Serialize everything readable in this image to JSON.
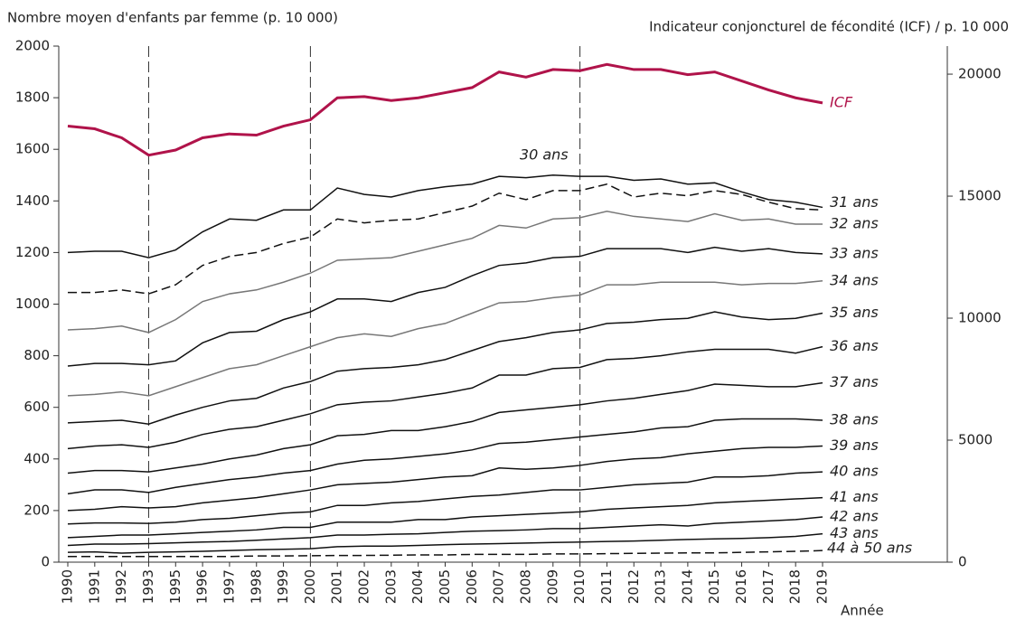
{
  "chart_data": {
    "type": "line",
    "y_axis_label": "Nombre moyen d'enfants par femme (p. 10 000)",
    "y2_axis_label": "Indicateur conjoncturel de fécondité (ICF) / p. 10 000",
    "x_axis_label": "Année",
    "categories": [
      "1990",
      "1991",
      "1992",
      "1993",
      "1995",
      "1996",
      "1997",
      "1998",
      "1999",
      "2000",
      "2001",
      "2002",
      "2003",
      "2004",
      "2005",
      "2006",
      "2007",
      "2008",
      "2009",
      "2010",
      "2011",
      "2012",
      "2013",
      "2014",
      "2015",
      "2016",
      "2017",
      "2018",
      "2019"
    ],
    "reference_years": [
      "1993",
      "2000",
      "2010"
    ],
    "ylim": [
      0,
      2000
    ],
    "yticks": [
      0,
      200,
      400,
      600,
      800,
      1000,
      1200,
      1400,
      1600,
      1800,
      2000
    ],
    "y2lim": [
      0,
      21150
    ],
    "y2ticks": [
      0,
      5000,
      10000,
      15000,
      20000
    ],
    "grid": false,
    "series": [
      {
        "name": "ICF",
        "axis": "y2",
        "color": "#b0134a",
        "dashed": false,
        "values": [
          17870,
          17760,
          17390,
          16680,
          16890,
          17390,
          17550,
          17500,
          17870,
          18130,
          19030,
          19080,
          18920,
          19030,
          19240,
          19450,
          20090,
          19880,
          20190,
          20140,
          20400,
          20190,
          20190,
          19980,
          20090,
          19720,
          19350,
          19030,
          18820
        ]
      },
      {
        "name": "30 ans",
        "color": "#111111",
        "dashed": false,
        "values": [
          1200,
          1205,
          1205,
          1180,
          1210,
          1280,
          1330,
          1325,
          1365,
          1365,
          1450,
          1425,
          1415,
          1440,
          1455,
          1465,
          1495,
          1490,
          1500,
          1495,
          1495,
          1480,
          1485,
          1465,
          1470,
          1435,
          1405,
          1395,
          1375
        ]
      },
      {
        "name": "31 ans",
        "color": "#111111",
        "dashed": true,
        "values": [
          1045,
          1045,
          1055,
          1040,
          1075,
          1150,
          1185,
          1200,
          1235,
          1260,
          1330,
          1315,
          1325,
          1330,
          1355,
          1380,
          1430,
          1405,
          1440,
          1440,
          1465,
          1415,
          1430,
          1420,
          1440,
          1425,
          1395,
          1370,
          1365
        ]
      },
      {
        "name": "32 ans",
        "color": "#777777",
        "dashed": false,
        "values": [
          900,
          905,
          915,
          890,
          940,
          1010,
          1040,
          1055,
          1085,
          1120,
          1170,
          1175,
          1180,
          1205,
          1230,
          1255,
          1305,
          1295,
          1330,
          1335,
          1360,
          1340,
          1330,
          1320,
          1350,
          1325,
          1330,
          1310,
          1310
        ]
      },
      {
        "name": "33 ans",
        "color": "#111111",
        "dashed": false,
        "values": [
          760,
          770,
          770,
          765,
          780,
          850,
          890,
          895,
          940,
          970,
          1020,
          1020,
          1010,
          1045,
          1065,
          1110,
          1150,
          1160,
          1180,
          1185,
          1215,
          1215,
          1215,
          1200,
          1220,
          1205,
          1215,
          1200,
          1195
        ]
      },
      {
        "name": "34 ans",
        "color": "#777777",
        "dashed": false,
        "values": [
          645,
          650,
          660,
          645,
          680,
          715,
          750,
          765,
          800,
          835,
          870,
          885,
          875,
          905,
          925,
          965,
          1005,
          1010,
          1025,
          1035,
          1075,
          1075,
          1085,
          1085,
          1085,
          1075,
          1080,
          1080,
          1090
        ]
      },
      {
        "name": "35 ans",
        "color": "#111111",
        "dashed": false,
        "values": [
          540,
          545,
          550,
          535,
          570,
          600,
          625,
          635,
          675,
          700,
          740,
          750,
          755,
          765,
          785,
          820,
          855,
          870,
          890,
          900,
          925,
          930,
          940,
          945,
          970,
          950,
          940,
          945,
          965
        ]
      },
      {
        "name": "36 ans",
        "color": "#111111",
        "dashed": false,
        "values": [
          440,
          450,
          455,
          445,
          465,
          495,
          515,
          525,
          550,
          575,
          610,
          620,
          625,
          640,
          655,
          675,
          725,
          725,
          750,
          755,
          785,
          790,
          800,
          815,
          825,
          825,
          825,
          810,
          835
        ]
      },
      {
        "name": "37 ans",
        "color": "#111111",
        "dashed": false,
        "values": [
          345,
          355,
          355,
          350,
          365,
          380,
          400,
          415,
          440,
          455,
          490,
          495,
          510,
          510,
          525,
          545,
          580,
          590,
          600,
          610,
          625,
          635,
          650,
          665,
          690,
          685,
          680,
          680,
          695
        ]
      },
      {
        "name": "38 ans",
        "color": "#111111",
        "dashed": false,
        "values": [
          265,
          280,
          280,
          270,
          290,
          305,
          320,
          330,
          345,
          355,
          380,
          395,
          400,
          410,
          420,
          435,
          460,
          465,
          475,
          485,
          495,
          505,
          520,
          525,
          550,
          555,
          555,
          555,
          550
        ]
      },
      {
        "name": "39 ans",
        "color": "#111111",
        "dashed": false,
        "values": [
          200,
          205,
          215,
          210,
          215,
          230,
          240,
          250,
          265,
          280,
          300,
          305,
          310,
          320,
          330,
          335,
          365,
          360,
          365,
          375,
          390,
          400,
          405,
          420,
          430,
          440,
          445,
          445,
          450
        ]
      },
      {
        "name": "40 ans",
        "color": "#111111",
        "dashed": false,
        "values": [
          148,
          152,
          152,
          150,
          155,
          165,
          170,
          180,
          190,
          195,
          220,
          220,
          230,
          235,
          245,
          255,
          260,
          270,
          280,
          280,
          290,
          300,
          305,
          310,
          330,
          330,
          335,
          345,
          350
        ]
      },
      {
        "name": "41 ans",
        "color": "#111111",
        "dashed": false,
        "values": [
          95,
          100,
          105,
          105,
          110,
          115,
          120,
          125,
          135,
          135,
          155,
          155,
          155,
          165,
          165,
          175,
          180,
          185,
          190,
          195,
          205,
          210,
          215,
          220,
          230,
          235,
          240,
          245,
          250
        ]
      },
      {
        "name": "42 ans",
        "color": "#111111",
        "dashed": false,
        "values": [
          65,
          70,
          70,
          72,
          75,
          78,
          80,
          85,
          90,
          95,
          105,
          105,
          108,
          110,
          115,
          120,
          122,
          125,
          130,
          130,
          135,
          140,
          145,
          140,
          150,
          155,
          160,
          165,
          175
        ]
      },
      {
        "name": "43 ans",
        "color": "#111111",
        "dashed": false,
        "values": [
          38,
          40,
          35,
          38,
          40,
          42,
          45,
          48,
          50,
          52,
          60,
          62,
          62,
          65,
          68,
          70,
          72,
          74,
          76,
          78,
          80,
          82,
          85,
          88,
          90,
          92,
          95,
          100,
          110
        ]
      },
      {
        "name": "44 à 50 ans",
        "color": "#111111",
        "dashed": true,
        "values": [
          22,
          22,
          22,
          22,
          22,
          22,
          22,
          24,
          24,
          25,
          26,
          26,
          27,
          28,
          28,
          30,
          30,
          30,
          32,
          32,
          33,
          34,
          35,
          36,
          36,
          38,
          40,
          42,
          45
        ]
      }
    ]
  }
}
